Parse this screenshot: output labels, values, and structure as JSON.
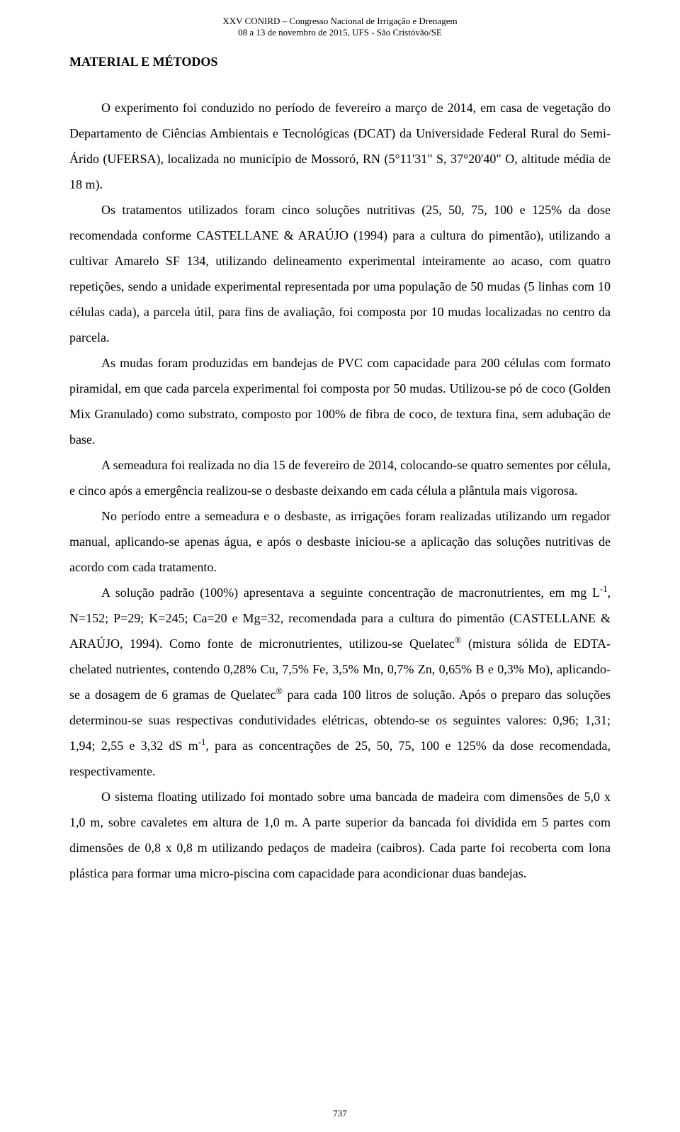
{
  "running_head": {
    "line1": "XXV CONIRD – Congresso Nacional de Irrigação e Drenagem",
    "line2": "08 a 13 de novembro de 2015, UFS - São Cristóvão/SE"
  },
  "section_title": "MATERIAL E MÉTODOS",
  "paragraphs": {
    "p1": "O experimento foi conduzido no período de fevereiro a março de 2014, em casa de vegetação do Departamento de Ciências Ambientais e Tecnológicas (DCAT) da Universidade Federal Rural do Semi-Árido (UFERSA), localizada no município de Mossoró, RN (5°11'31\" S, 37°20'40\" O, altitude média de 18 m).",
    "p2": "Os tratamentos utilizados foram cinco soluções nutritivas (25, 50, 75, 100 e 125% da dose recomendada conforme CASTELLANE & ARAÚJO (1994) para a cultura do pimentão), utilizando a cultivar Amarelo SF 134, utilizando delineamento experimental inteiramente ao acaso, com quatro repetições, sendo a unidade experimental representada por uma população de 50 mudas (5 linhas com 10 células cada), a parcela útil, para fins de avaliação, foi composta por 10 mudas localizadas no centro da parcela.",
    "p3": "As mudas foram produzidas em bandejas de PVC com capacidade para 200 células com formato piramidal, em que cada parcela experimental foi composta por 50 mudas. Utilizou-se pó de coco (Golden Mix Granulado) como substrato, composto por 100% de fibra de coco, de textura fina, sem adubação de base.",
    "p4": "A semeadura foi realizada no dia 15 de fevereiro de 2014, colocando-se quatro sementes por célula, e cinco após a emergência realizou-se o desbaste deixando em cada célula a plântula mais vigorosa.",
    "p5": "No período entre a semeadura e o desbaste, as irrigações foram realizadas utilizando um regador manual, aplicando-se apenas água, e após o desbaste iniciou-se a aplicação das soluções nutritivas de acordo com cada tratamento.",
    "p6_a": "A solução padrão (100%) apresentava a seguinte concentração de macronutrientes, em mg L",
    "p6_b": ", N=152; P=29; K=245; Ca=20 e Mg=32, recomendada para a cultura do pimentão (CASTELLANE & ARAÚJO, 1994). Como fonte de micronutrientes, utilizou-se Quelatec",
    "p6_c": " (mistura sólida de EDTA-chelated nutrientes, contendo 0,28% Cu, 7,5% Fe, 3,5% Mn, 0,7% Zn, 0,65% B e 0,3% Mo), aplicando-se a dosagem de 6 gramas de Quelatec",
    "p6_d": " para cada 100 litros de solução. Após o preparo das soluções determinou-se suas respectivas condutividades elétricas, obtendo-se os seguintes valores: 0,96; 1,31; 1,94; 2,55 e 3,32 dS m",
    "p6_e": ", para as concentrações de 25, 50, 75, 100 e 125% da dose recomendada, respectivamente.",
    "p7": "O sistema floating utilizado foi montado sobre uma bancada de madeira com dimensões de 5,0 x 1,0 m, sobre cavaletes em altura de 1,0 m. A parte superior da bancada foi dividida em 5 partes com dimensões de 0,8 x 0,8 m utilizando pedaços de madeira (caibros). Cada parte foi recoberta com lona plástica para formar uma micro-piscina com capacidade para acondicionar duas bandejas.",
    "sup_neg1": "-1",
    "sup_reg": "®"
  },
  "page_number": "737"
}
